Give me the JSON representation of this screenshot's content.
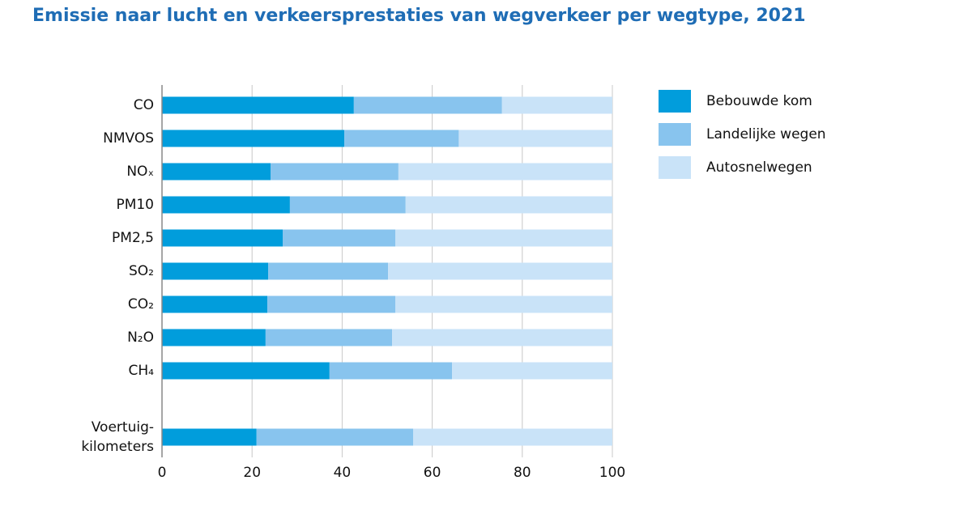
{
  "chart_data": {
    "type": "stacked-bar-horizontal",
    "title": "Emissie naar lucht en verkeersprestaties van wegverkeer per wegtype, 2021",
    "categories": [
      "CO",
      "NMVOS",
      "NOₓ",
      "PM10",
      "PM2,5",
      "SO₂",
      "CO₂",
      "N₂O",
      "CH₄",
      null,
      "Voertuig-\nkilometers"
    ],
    "series": [
      {
        "name": "Bebouwde kom",
        "color": "#019ddc",
        "values": [
          42.6,
          40.5,
          24.1,
          28.4,
          26.8,
          23.6,
          23.4,
          23.0,
          37.2,
          null,
          21.0
        ]
      },
      {
        "name": "Landelijke wegen",
        "color": "#88c4ee",
        "values": [
          32.9,
          25.4,
          28.4,
          25.7,
          25.0,
          26.6,
          28.4,
          28.1,
          27.2,
          null,
          34.8
        ]
      },
      {
        "name": "Autosnelwegen",
        "color": "#c9e3f8",
        "values": [
          24.5,
          34.1,
          47.5,
          45.9,
          48.2,
          49.8,
          48.2,
          48.9,
          35.6,
          null,
          44.2
        ]
      }
    ],
    "xlim": [
      0,
      100
    ],
    "xticks": [
      0,
      20,
      40,
      60,
      80,
      100
    ],
    "grid": true,
    "legend": "right"
  }
}
